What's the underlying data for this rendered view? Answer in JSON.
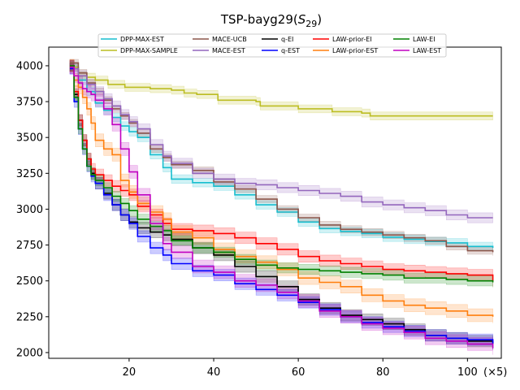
{
  "chart_data": {
    "type": "line",
    "title": "TSP-bayg29(S_29)",
    "title_main": "TSP-bayg29(",
    "title_var": "S",
    "title_sub": "29",
    "title_close": ")",
    "xlabel": "",
    "ylabel": "",
    "x_multiplier": "(×5)",
    "xlim": [
      1,
      108
    ],
    "ylim": [
      1960,
      4130
    ],
    "xticks": [
      20,
      40,
      60,
      80,
      100
    ],
    "yticks": [
      2000,
      2250,
      2500,
      2750,
      3000,
      3250,
      3500,
      3750,
      4000
    ],
    "grid": false,
    "legend_position": "top-center",
    "legend_columns": 5,
    "series": [
      {
        "name": "DPP-MAX-EST",
        "color": "#17becf",
        "band": 30,
        "x": [
          6,
          8,
          10,
          12,
          14,
          16,
          18,
          20,
          22,
          25,
          28,
          30,
          35,
          40,
          45,
          50,
          55,
          60,
          65,
          70,
          75,
          80,
          85,
          90,
          95,
          100,
          106
        ],
        "y": [
          3990,
          3900,
          3820,
          3740,
          3690,
          3640,
          3580,
          3540,
          3500,
          3380,
          3290,
          3210,
          3185,
          3160,
          3100,
          3030,
          2980,
          2910,
          2865,
          2845,
          2830,
          2805,
          2790,
          2775,
          2765,
          2740,
          2730
        ]
      },
      {
        "name": "DPP-MAX-SAMPLE",
        "color": "#bcbd22",
        "band": 28,
        "x": [
          6,
          8,
          10,
          12,
          15,
          19,
          22,
          25,
          30,
          33,
          36,
          38,
          41,
          44,
          50,
          51,
          55,
          58,
          60,
          65,
          68,
          70,
          75,
          77,
          80,
          85,
          90,
          95,
          100,
          106
        ],
        "y": [
          3990,
          3930,
          3920,
          3900,
          3870,
          3850,
          3850,
          3840,
          3830,
          3810,
          3800,
          3800,
          3760,
          3760,
          3750,
          3720,
          3720,
          3720,
          3700,
          3700,
          3680,
          3680,
          3670,
          3650,
          3650,
          3650,
          3650,
          3650,
          3650,
          3650
        ]
      },
      {
        "name": "MACE-UCB",
        "color": "#8c564b",
        "band": 25,
        "x": [
          6,
          8,
          10,
          12,
          14,
          16,
          18,
          20,
          22,
          25,
          28,
          30,
          35,
          40,
          45,
          50,
          55,
          60,
          65,
          70,
          75,
          80,
          85,
          90,
          95,
          100,
          106
        ],
        "y": [
          4020,
          3950,
          3880,
          3820,
          3760,
          3700,
          3650,
          3600,
          3530,
          3420,
          3360,
          3310,
          3270,
          3190,
          3140,
          3070,
          3000,
          2940,
          2890,
          2860,
          2840,
          2820,
          2800,
          2780,
          2740,
          2710,
          2700
        ]
      },
      {
        "name": "MACE-EST",
        "color": "#9467bd",
        "band": 35,
        "x": [
          6,
          8,
          10,
          12,
          14,
          16,
          18,
          20,
          22,
          25,
          28,
          30,
          35,
          40,
          45,
          50,
          55,
          60,
          65,
          70,
          75,
          80,
          85,
          90,
          95,
          100,
          106
        ],
        "y": [
          3980,
          3930,
          3870,
          3820,
          3770,
          3720,
          3660,
          3610,
          3560,
          3450,
          3370,
          3320,
          3250,
          3210,
          3180,
          3170,
          3150,
          3130,
          3110,
          3090,
          3050,
          3030,
          3010,
          2990,
          2960,
          2940,
          2940
        ]
      },
      {
        "name": "q-EI",
        "color": "#000000",
        "band": 40,
        "x": [
          6,
          7,
          8,
          9,
          10,
          11,
          12,
          14,
          16,
          18,
          20,
          22,
          25,
          28,
          30,
          35,
          40,
          45,
          50,
          55,
          60,
          65,
          70,
          75,
          80,
          85,
          90,
          95,
          100,
          106
        ],
        "y": [
          4000,
          3800,
          3620,
          3480,
          3350,
          3250,
          3180,
          3110,
          3030,
          2960,
          2910,
          2870,
          2840,
          2820,
          2790,
          2730,
          2680,
          2600,
          2530,
          2460,
          2370,
          2310,
          2260,
          2230,
          2200,
          2160,
          2120,
          2100,
          2080,
          2060
        ]
      },
      {
        "name": "q-EST",
        "color": "#0000ff",
        "band": 40,
        "x": [
          6,
          7,
          8,
          9,
          10,
          11,
          12,
          14,
          16,
          18,
          20,
          22,
          25,
          28,
          30,
          35,
          40,
          45,
          50,
          55,
          60,
          65,
          70,
          75,
          80,
          85,
          90,
          95,
          100,
          106
        ],
        "y": [
          3980,
          3750,
          3560,
          3420,
          3300,
          3230,
          3180,
          3100,
          3030,
          2960,
          2900,
          2810,
          2730,
          2680,
          2620,
          2570,
          2540,
          2480,
          2440,
          2400,
          2350,
          2300,
          2250,
          2210,
          2180,
          2150,
          2120,
          2100,
          2090,
          2060
        ]
      },
      {
        "name": "LAW-prior-EI",
        "color": "#ff0000",
        "band": 40,
        "x": [
          6,
          7,
          8,
          9,
          10,
          11,
          12,
          14,
          16,
          18,
          20,
          22,
          25,
          28,
          30,
          35,
          40,
          45,
          50,
          55,
          60,
          65,
          70,
          75,
          80,
          85,
          90,
          95,
          100,
          106
        ],
        "y": [
          4000,
          3820,
          3620,
          3480,
          3350,
          3280,
          3240,
          3200,
          3160,
          3130,
          3100,
          3020,
          2960,
          2900,
          2860,
          2850,
          2830,
          2800,
          2760,
          2720,
          2670,
          2640,
          2620,
          2600,
          2580,
          2570,
          2560,
          2550,
          2540,
          2500
        ]
      },
      {
        "name": "LAW-prior-EST",
        "color": "#ff7f0e",
        "band": 45,
        "x": [
          6,
          7,
          8,
          9,
          10,
          11,
          12,
          14,
          16,
          18,
          20,
          22,
          25,
          28,
          30,
          35,
          40,
          45,
          50,
          55,
          60,
          65,
          70,
          75,
          80,
          85,
          90,
          95,
          100,
          106
        ],
        "y": [
          4000,
          3900,
          3850,
          3780,
          3700,
          3600,
          3480,
          3420,
          3380,
          3200,
          3120,
          3040,
          2980,
          2930,
          2840,
          2800,
          2720,
          2670,
          2630,
          2580,
          2520,
          2490,
          2460,
          2400,
          2360,
          2330,
          2310,
          2290,
          2260,
          2250
        ]
      },
      {
        "name": "LAW-EI",
        "color": "#008000",
        "band": 35,
        "x": [
          6,
          7,
          8,
          9,
          10,
          11,
          12,
          14,
          16,
          18,
          20,
          22,
          25,
          28,
          30,
          35,
          40,
          45,
          50,
          55,
          60,
          65,
          70,
          75,
          80,
          85,
          90,
          95,
          100,
          106
        ],
        "y": [
          4000,
          3780,
          3560,
          3420,
          3300,
          3240,
          3200,
          3150,
          3090,
          3040,
          2990,
          2930,
          2880,
          2850,
          2780,
          2730,
          2700,
          2650,
          2610,
          2590,
          2580,
          2570,
          2560,
          2550,
          2540,
          2520,
          2520,
          2510,
          2500,
          2490
        ]
      },
      {
        "name": "LAW-EST",
        "color": "#c000c0",
        "band": 45,
        "x": [
          6,
          7,
          8,
          9,
          10,
          11,
          12,
          14,
          16,
          18,
          20,
          22,
          25,
          28,
          30,
          35,
          40,
          45,
          50,
          55,
          60,
          65,
          70,
          75,
          80,
          85,
          90,
          95,
          100,
          106
        ],
        "y": [
          3990,
          3930,
          3880,
          3840,
          3820,
          3800,
          3760,
          3700,
          3590,
          3420,
          3260,
          3100,
          2900,
          2760,
          2700,
          2600,
          2560,
          2500,
          2470,
          2420,
          2360,
          2290,
          2250,
          2200,
          2170,
          2140,
          2100,
          2080,
          2060,
          2030
        ]
      }
    ]
  }
}
